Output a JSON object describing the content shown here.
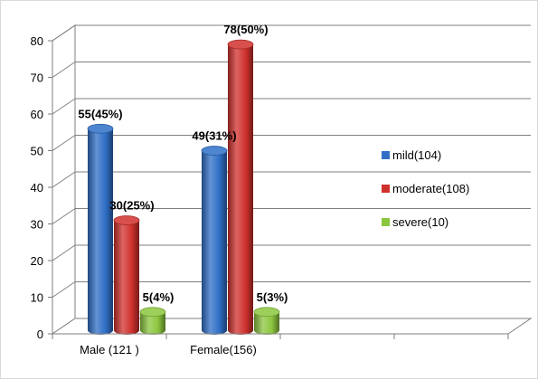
{
  "chart_data": {
    "type": "bar",
    "style": "3d-cylinder",
    "categories": [
      "Male (121 )",
      "Female(156)"
    ],
    "series": [
      {
        "name": "mild(104)",
        "values": [
          55,
          49
        ],
        "labels": [
          "55(45%)",
          "49(31%)"
        ],
        "color": "#2f6fc6"
      },
      {
        "name": "moderate(108)",
        "values": [
          30,
          78
        ],
        "labels": [
          "30(25%)",
          "78(50%)"
        ],
        "color": "#d0312d"
      },
      {
        "name": "severe(10)",
        "values": [
          5,
          5
        ],
        "labels": [
          "5(4%)",
          "5(3%)"
        ],
        "color": "#8cc63f"
      }
    ],
    "ylim": [
      0,
      80
    ],
    "yticks": [
      0,
      10,
      20,
      30,
      40,
      50,
      60,
      70,
      80
    ],
    "grid": true,
    "legend_position": "right"
  }
}
